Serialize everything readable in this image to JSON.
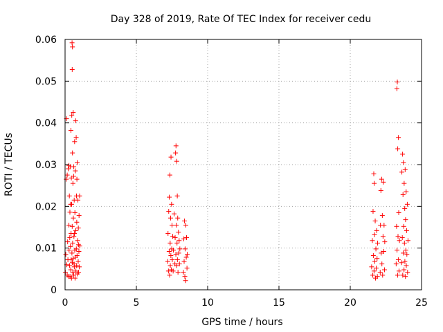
{
  "chart_data": {
    "type": "scatter",
    "title": "Day 328 of 2019, Rate Of TEC Index for receiver cedu",
    "xlabel": "GPS time / hours",
    "ylabel": "ROTI / TECUs",
    "xlim": [
      0,
      25
    ],
    "ylim": [
      0,
      0.06
    ],
    "xticks": [
      0,
      5,
      10,
      15,
      20,
      25
    ],
    "xtick_labels": [
      "0",
      "5",
      "10",
      "15",
      "20",
      "25"
    ],
    "yticks": [
      0,
      0.01,
      0.02,
      0.03,
      0.04,
      0.05,
      0.06
    ],
    "ytick_labels": [
      "0",
      "0.01",
      "0.02",
      "0.03",
      "0.04",
      "0.05",
      "0.06"
    ],
    "grid": true,
    "marker": "+",
    "color": "#ff0000",
    "series": [
      {
        "name": "ROTI",
        "points": [
          [
            0.02,
            0.0042
          ],
          [
            0.05,
            0.0085
          ],
          [
            0.08,
            0.0265
          ],
          [
            0.1,
            0.041
          ],
          [
            0.12,
            0.006
          ],
          [
            0.15,
            0.0035
          ],
          [
            0.18,
            0.0115
          ],
          [
            0.2,
            0.0072
          ],
          [
            0.22,
            0.029
          ],
          [
            0.25,
            0.0032
          ],
          [
            0.27,
            0.0155
          ],
          [
            0.28,
            0.0095
          ],
          [
            0.3,
            0.0225
          ],
          [
            0.32,
            0.0058
          ],
          [
            0.34,
            0.0186
          ],
          [
            0.35,
            0.0032
          ],
          [
            0.37,
            0.0295
          ],
          [
            0.38,
            0.0104
          ],
          [
            0.4,
            0.0048
          ],
          [
            0.41,
            0.0382
          ],
          [
            0.42,
            0.0135
          ],
          [
            0.43,
            0.0072
          ],
          [
            0.44,
            0.0268
          ],
          [
            0.45,
            0.0028
          ],
          [
            0.46,
            0.0205
          ],
          [
            0.47,
            0.0418
          ],
          [
            0.48,
            0.0088
          ],
          [
            0.49,
            0.0592
          ],
          [
            0.5,
            0.0152
          ],
          [
            0.5,
            0.0528
          ],
          [
            0.51,
            0.0065
          ],
          [
            0.52,
            0.0582
          ],
          [
            0.52,
            0.0328
          ],
          [
            0.53,
            0.0112
          ],
          [
            0.54,
            0.0042
          ],
          [
            0.55,
            0.0255
          ],
          [
            0.56,
            0.0075
          ],
          [
            0.57,
            0.0425
          ],
          [
            0.58,
            0.0172
          ],
          [
            0.6,
            0.0035
          ],
          [
            0.61,
            0.0295
          ],
          [
            0.62,
            0.0128
          ],
          [
            0.63,
            0.0062
          ],
          [
            0.64,
            0.0215
          ],
          [
            0.65,
            0.0055
          ],
          [
            0.67,
            0.0355
          ],
          [
            0.68,
            0.0095
          ],
          [
            0.69,
            0.0185
          ],
          [
            0.7,
            0.0028
          ],
          [
            0.72,
            0.0285
          ],
          [
            0.73,
            0.0078
          ],
          [
            0.74,
            0.0405
          ],
          [
            0.75,
            0.0142
          ],
          [
            0.76,
            0.0045
          ],
          [
            0.78,
            0.0365
          ],
          [
            0.79,
            0.0098
          ],
          [
            0.8,
            0.0225
          ],
          [
            0.81,
            0.0058
          ],
          [
            0.82,
            0.0162
          ],
          [
            0.84,
            0.0082
          ],
          [
            0.85,
            0.0305
          ],
          [
            0.86,
            0.0038
          ],
          [
            0.88,
            0.0118
          ],
          [
            0.9,
            0.0215
          ],
          [
            0.92,
            0.0068
          ],
          [
            0.93,
            0.0148
          ],
          [
            0.95,
            0.0042
          ],
          [
            0.97,
            0.0092
          ],
          [
            0.98,
            0.0178
          ],
          [
            1.0,
            0.0055
          ],
          [
            1.02,
            0.0225
          ],
          [
            1.03,
            0.0105
          ],
          [
            0.15,
            0.0275
          ],
          [
            0.27,
            0.0298
          ],
          [
            0.33,
            0.0125
          ],
          [
            0.39,
            0.0205
          ],
          [
            0.6,
            0.0272
          ],
          [
            0.66,
            0.0135
          ],
          [
            0.83,
            0.0265
          ],
          [
            0.94,
            0.0108
          ],
          [
            7.2,
            0.0068
          ],
          [
            7.22,
            0.0135
          ],
          [
            7.25,
            0.0045
          ],
          [
            7.27,
            0.0188
          ],
          [
            7.3,
            0.0092
          ],
          [
            7.31,
            0.0222
          ],
          [
            7.33,
            0.0035
          ],
          [
            7.35,
            0.0275
          ],
          [
            7.37,
            0.0112
          ],
          [
            7.38,
            0.0058
          ],
          [
            7.4,
            0.0172
          ],
          [
            7.42,
            0.0082
          ],
          [
            7.43,
            0.0318
          ],
          [
            7.45,
            0.0048
          ],
          [
            7.47,
            0.0205
          ],
          [
            7.48,
            0.0098
          ],
          [
            7.5,
            0.0155
          ],
          [
            7.52,
            0.0072
          ],
          [
            7.55,
            0.0128
          ],
          [
            7.58,
            0.0045
          ],
          [
            7.6,
            0.0095
          ],
          [
            7.65,
            0.0182
          ],
          [
            7.7,
            0.0062
          ],
          [
            7.72,
            0.0125
          ],
          [
            7.75,
            0.0328
          ],
          [
            7.77,
            0.0085
          ],
          [
            7.78,
            0.0345
          ],
          [
            7.8,
            0.0155
          ],
          [
            7.82,
            0.0058
          ],
          [
            7.83,
            0.0308
          ],
          [
            7.85,
            0.0112
          ],
          [
            7.87,
            0.0225
          ],
          [
            7.88,
            0.0072
          ],
          [
            7.9,
            0.0172
          ],
          [
            7.92,
            0.0042
          ],
          [
            7.95,
            0.0138
          ],
          [
            7.97,
            0.0088
          ],
          [
            8.0,
            0.0118
          ],
          [
            8.02,
            0.0062
          ],
          [
            8.05,
            0.0098
          ],
          [
            8.3,
            0.0042
          ],
          [
            8.32,
            0.0122
          ],
          [
            8.35,
            0.0068
          ],
          [
            8.37,
            0.0165
          ],
          [
            8.4,
            0.0032
          ],
          [
            8.42,
            0.0098
          ],
          [
            8.45,
            0.0022
          ],
          [
            8.47,
            0.0155
          ],
          [
            8.5,
            0.0078
          ],
          [
            8.52,
            0.0125
          ],
          [
            8.55,
            0.0052
          ],
          [
            8.57,
            0.0085
          ],
          [
            21.5,
            0.0055
          ],
          [
            21.55,
            0.0118
          ],
          [
            21.58,
            0.0035
          ],
          [
            21.6,
            0.0188
          ],
          [
            21.62,
            0.0082
          ],
          [
            21.65,
            0.0278
          ],
          [
            21.67,
            0.0045
          ],
          [
            21.68,
            0.0255
          ],
          [
            21.7,
            0.0132
          ],
          [
            21.72,
            0.0068
          ],
          [
            21.75,
            0.0165
          ],
          [
            21.77,
            0.0028
          ],
          [
            21.8,
            0.0098
          ],
          [
            21.82,
            0.0052
          ],
          [
            21.85,
            0.0142
          ],
          [
            21.88,
            0.0075
          ],
          [
            21.9,
            0.0032
          ],
          [
            21.92,
            0.0112
          ],
          [
            22.1,
            0.0042
          ],
          [
            22.12,
            0.0155
          ],
          [
            22.15,
            0.0238
          ],
          [
            22.17,
            0.0088
          ],
          [
            22.2,
            0.0265
          ],
          [
            22.22,
            0.0062
          ],
          [
            22.25,
            0.0178
          ],
          [
            22.27,
            0.0035
          ],
          [
            22.3,
            0.0128
          ],
          [
            22.32,
            0.0258
          ],
          [
            22.35,
            0.0092
          ],
          [
            22.37,
            0.0155
          ],
          [
            22.4,
            0.0048
          ],
          [
            22.42,
            0.0115
          ],
          [
            23.22,
            0.0062
          ],
          [
            23.25,
            0.0152
          ],
          [
            23.27,
            0.0482
          ],
          [
            23.28,
            0.0095
          ],
          [
            23.3,
            0.0498
          ],
          [
            23.32,
            0.0035
          ],
          [
            23.33,
            0.0338
          ],
          [
            23.35,
            0.0128
          ],
          [
            23.37,
            0.0072
          ],
          [
            23.38,
            0.0365
          ],
          [
            23.4,
            0.0185
          ],
          [
            23.42,
            0.0045
          ],
          [
            23.45,
            0.0118
          ],
          [
            23.6,
            0.0065
          ],
          [
            23.62,
            0.0282
          ],
          [
            23.65,
            0.0125
          ],
          [
            23.67,
            0.0325
          ],
          [
            23.68,
            0.0035
          ],
          [
            23.7,
            0.0228
          ],
          [
            23.72,
            0.0088
          ],
          [
            23.73,
            0.0305
          ],
          [
            23.75,
            0.0152
          ],
          [
            23.77,
            0.0048
          ],
          [
            23.78,
            0.0255
          ],
          [
            23.8,
            0.0112
          ],
          [
            23.82,
            0.0195
          ],
          [
            23.83,
            0.0068
          ],
          [
            23.85,
            0.0288
          ],
          [
            23.87,
            0.0032
          ],
          [
            23.88,
            0.0168
          ],
          [
            23.9,
            0.0095
          ],
          [
            23.92,
            0.0235
          ],
          [
            23.93,
            0.0058
          ],
          [
            23.95,
            0.0142
          ],
          [
            23.97,
            0.0085
          ],
          [
            24.0,
            0.0205
          ],
          [
            24.02,
            0.0042
          ],
          [
            24.05,
            0.0118
          ]
        ]
      }
    ]
  }
}
